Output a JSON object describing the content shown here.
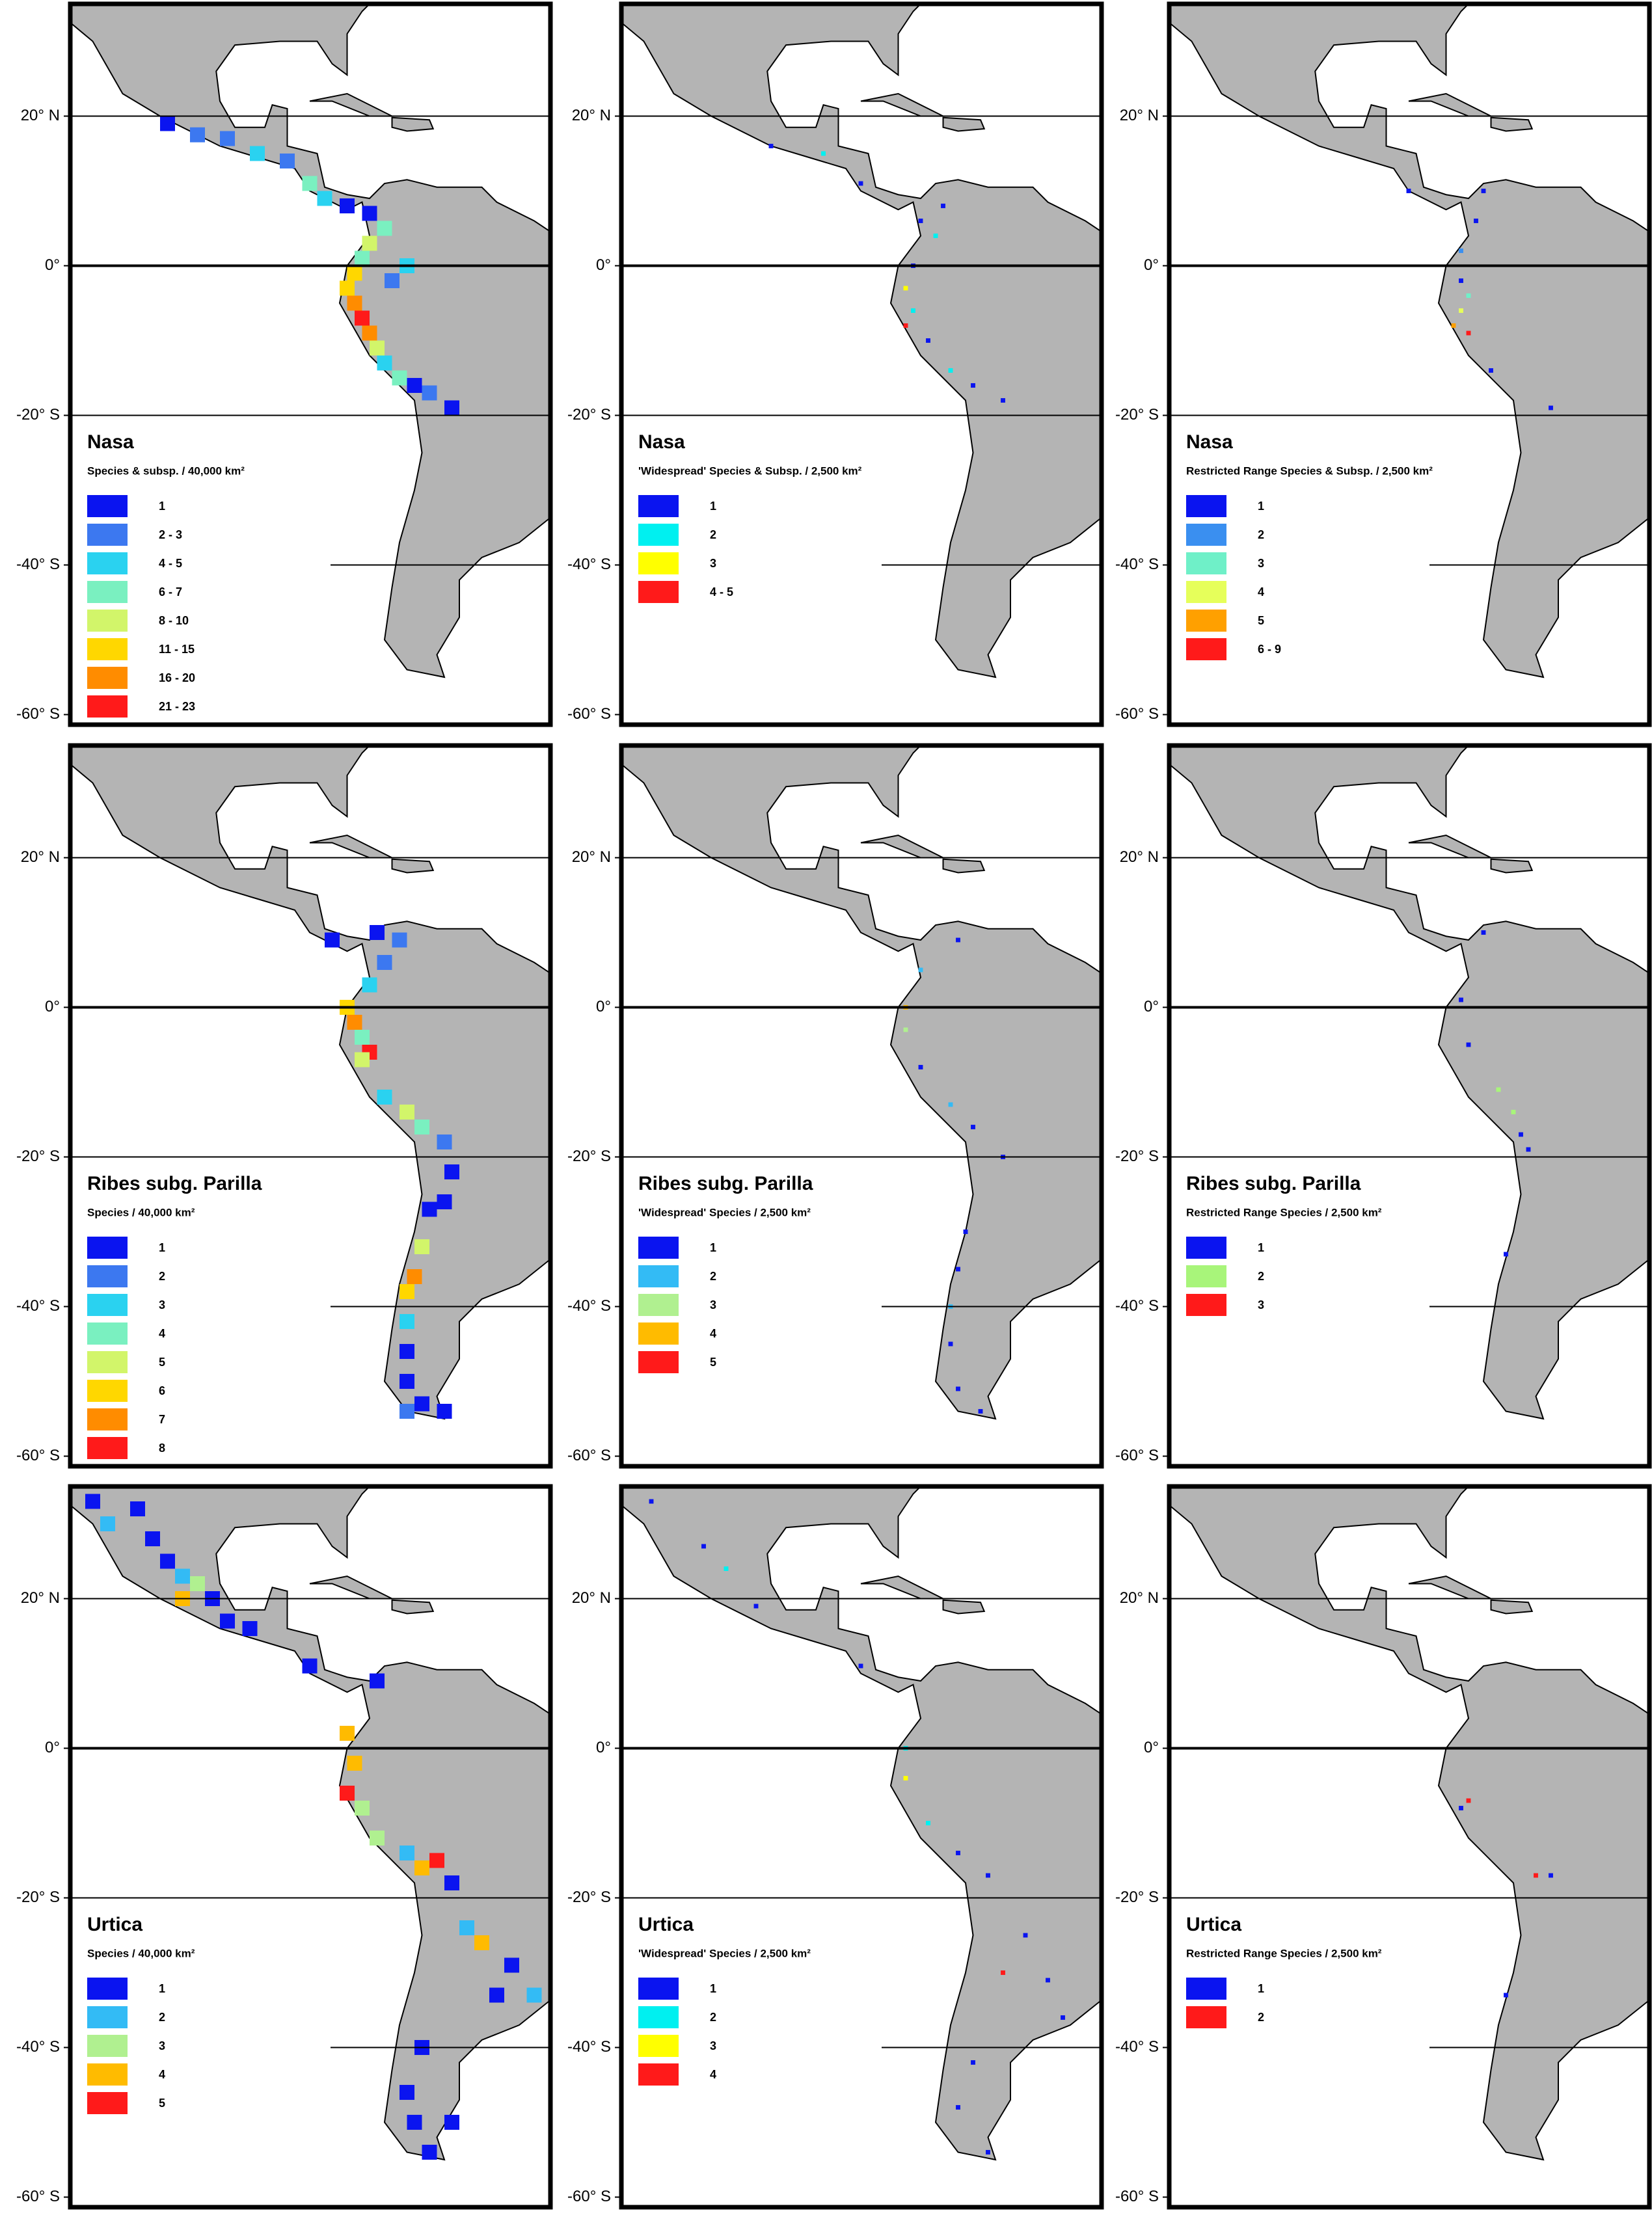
{
  "latitude_lines": [
    {
      "value": 20,
      "label": "20° N"
    },
    {
      "value": 0,
      "label": "0°"
    },
    {
      "value": -20,
      "label": "-20° S"
    },
    {
      "value": -40,
      "label": "-40° S"
    },
    {
      "value": -60,
      "label": "-60° S"
    }
  ],
  "panels": [
    {
      "title": "Nasa",
      "subtitle": "Species & subsp. / 40,000 km²",
      "legend": [
        {
          "label": "1",
          "color": "#0a14f0"
        },
        {
          "label": "2 - 3",
          "color": "#3c78f0"
        },
        {
          "label": "4 - 5",
          "color": "#2ad2f0"
        },
        {
          "label": "6 - 7",
          "color": "#7af0c0"
        },
        {
          "label": "8 - 10",
          "color": "#d2f56a"
        },
        {
          "label": "11 - 15",
          "color": "#ffd700"
        },
        {
          "label": "16 - 20",
          "color": "#ff8c00"
        },
        {
          "label": "21 - 23",
          "color": "#ff1a1a"
        }
      ],
      "cells": [
        [
          -104,
          19,
          0
        ],
        [
          -100,
          17.5,
          1
        ],
        [
          -96,
          17,
          1
        ],
        [
          -92,
          15,
          2
        ],
        [
          -88,
          14,
          1
        ],
        [
          -85,
          11,
          3
        ],
        [
          -83,
          9,
          2
        ],
        [
          -80,
          8,
          0
        ],
        [
          -77,
          7,
          0
        ],
        [
          -75,
          5,
          3
        ],
        [
          -77,
          3,
          4
        ],
        [
          -78,
          1,
          3
        ],
        [
          -79,
          -1,
          5
        ],
        [
          -80,
          -3,
          5
        ],
        [
          -79,
          -5,
          6
        ],
        [
          -78,
          -7,
          7
        ],
        [
          -77,
          -9,
          6
        ],
        [
          -76,
          -11,
          4
        ],
        [
          -75,
          -13,
          2
        ],
        [
          -73,
          -15,
          3
        ],
        [
          -71,
          -16,
          0
        ],
        [
          -69,
          -17,
          1
        ],
        [
          -66,
          -19,
          0
        ],
        [
          -74,
          -2,
          1
        ],
        [
          -72,
          0,
          2
        ]
      ]
    },
    {
      "title": "Nasa",
      "subtitle": "'Widespread' Species & Subsp. / 2,500 km²",
      "legend": [
        {
          "label": "1",
          "color": "#0a14f0"
        },
        {
          "label": "2",
          "color": "#00f0f0"
        },
        {
          "label": "3",
          "color": "#ffff00"
        },
        {
          "label": "4 - 5",
          "color": "#ff1a1a"
        }
      ],
      "cells": [
        [
          -97,
          16,
          0
        ],
        [
          -90,
          15,
          1
        ],
        [
          -85,
          11,
          0
        ],
        [
          -77,
          6,
          0
        ],
        [
          -75,
          4,
          1
        ],
        [
          -78,
          0,
          0
        ],
        [
          -79,
          -3,
          2
        ],
        [
          -78,
          -6,
          1
        ],
        [
          -76,
          -10,
          0
        ],
        [
          -73,
          -14,
          1
        ],
        [
          -70,
          -16,
          0
        ],
        [
          -66,
          -18,
          0
        ],
        [
          -74,
          8,
          0
        ],
        [
          -79,
          -8,
          3
        ]
      ]
    },
    {
      "title": "Nasa",
      "subtitle": "Restricted Range Species & Subsp. / 2,500 km²",
      "legend": [
        {
          "label": "1",
          "color": "#0a14f0"
        },
        {
          "label": "2",
          "color": "#3a8ff0"
        },
        {
          "label": "3",
          "color": "#6ff0c8"
        },
        {
          "label": "4",
          "color": "#e6ff5a"
        },
        {
          "label": "5",
          "color": "#ffa000"
        },
        {
          "label": "6 - 9",
          "color": "#ff1a1a"
        }
      ],
      "cells": [
        [
          -85,
          10,
          0
        ],
        [
          -75,
          10,
          0
        ],
        [
          -78,
          2,
          1
        ],
        [
          -78,
          -2,
          0
        ],
        [
          -77,
          -4,
          2
        ],
        [
          -78,
          -6,
          3
        ],
        [
          -79,
          -8,
          4
        ],
        [
          -77,
          -9,
          5
        ],
        [
          -74,
          -14,
          0
        ],
        [
          -66,
          -19,
          0
        ],
        [
          -76,
          6,
          0
        ]
      ]
    },
    {
      "title": "Ribes subg. Parilla",
      "subtitle": "Species / 40,000 km²",
      "legend": [
        {
          "label": "1",
          "color": "#0a14f0"
        },
        {
          "label": "2",
          "color": "#3c78f0"
        },
        {
          "label": "3",
          "color": "#2ad2f0"
        },
        {
          "label": "4",
          "color": "#7af0c0"
        },
        {
          "label": "5",
          "color": "#d2f56a"
        },
        {
          "label": "6",
          "color": "#ffd700"
        },
        {
          "label": "7",
          "color": "#ff8c00"
        },
        {
          "label": "8",
          "color": "#ff1a1a"
        }
      ],
      "cells": [
        [
          -82,
          9,
          0
        ],
        [
          -76,
          10,
          0
        ],
        [
          -73,
          9,
          1
        ],
        [
          -75,
          6,
          1
        ],
        [
          -77,
          3,
          2
        ],
        [
          -80,
          0,
          5
        ],
        [
          -79,
          -2,
          6
        ],
        [
          -78,
          -4,
          3
        ],
        [
          -77,
          -6,
          7
        ],
        [
          -78,
          -7,
          4
        ],
        [
          -75,
          -12,
          2
        ],
        [
          -72,
          -14,
          4
        ],
        [
          -70,
          -16,
          3
        ],
        [
          -67,
          -18,
          1
        ],
        [
          -66,
          -22,
          0
        ],
        [
          -67,
          -26,
          0
        ],
        [
          -69,
          -27,
          0
        ],
        [
          -70,
          -32,
          4
        ],
        [
          -71,
          -36,
          6
        ],
        [
          -72,
          -38,
          5
        ],
        [
          -72,
          -42,
          2
        ],
        [
          -72,
          -46,
          0
        ],
        [
          -72,
          -50,
          0
        ],
        [
          -70,
          -53,
          0
        ],
        [
          -67,
          -54,
          0
        ],
        [
          -72,
          -54,
          1
        ]
      ]
    },
    {
      "title": "Ribes subg. Parilla",
      "subtitle": "'Widespread' Species / 2,500 km²",
      "legend": [
        {
          "label": "1",
          "color": "#0a14f0"
        },
        {
          "label": "2",
          "color": "#33bbf5"
        },
        {
          "label": "3",
          "color": "#b0f090"
        },
        {
          "label": "4",
          "color": "#ffbb00"
        },
        {
          "label": "5",
          "color": "#ff1a1a"
        }
      ],
      "cells": [
        [
          -72,
          9,
          0
        ],
        [
          -77,
          5,
          1
        ],
        [
          -79,
          0,
          3
        ],
        [
          -79,
          -3,
          2
        ],
        [
          -77,
          -8,
          0
        ],
        [
          -73,
          -13,
          1
        ],
        [
          -70,
          -16,
          0
        ],
        [
          -66,
          -20,
          0
        ],
        [
          -71,
          -30,
          0
        ],
        [
          -72,
          -35,
          0
        ],
        [
          -73,
          -40,
          1
        ],
        [
          -73,
          -45,
          0
        ],
        [
          -72,
          -51,
          0
        ],
        [
          -69,
          -54,
          0
        ]
      ]
    },
    {
      "title": "Ribes subg. Parilla",
      "subtitle": "Restricted Range Species / 2,500 km²",
      "legend": [
        {
          "label": "1",
          "color": "#0a14f0"
        },
        {
          "label": "2",
          "color": "#a8f57a"
        },
        {
          "label": "3",
          "color": "#ff1a1a"
        }
      ],
      "cells": [
        [
          -75,
          10,
          0
        ],
        [
          -78,
          1,
          0
        ],
        [
          -77,
          -5,
          0
        ],
        [
          -73,
          -11,
          1
        ],
        [
          -71,
          -14,
          1
        ],
        [
          -70,
          -17,
          0
        ],
        [
          -69,
          -19,
          0
        ],
        [
          -72,
          -33,
          0
        ]
      ]
    },
    {
      "title": "Urtica",
      "subtitle": "Species / 40,000 km²",
      "legend": [
        {
          "label": "1",
          "color": "#0a14f0"
        },
        {
          "label": "2",
          "color": "#33bbf5"
        },
        {
          "label": "3",
          "color": "#b0f090"
        },
        {
          "label": "4",
          "color": "#ffbb00"
        },
        {
          "label": "5",
          "color": "#ff1a1a"
        }
      ],
      "cells": [
        [
          -114,
          33,
          0
        ],
        [
          -112,
          30,
          1
        ],
        [
          -108,
          32,
          0
        ],
        [
          -106,
          28,
          0
        ],
        [
          -104,
          25,
          0
        ],
        [
          -102,
          23,
          1
        ],
        [
          -100,
          22,
          2
        ],
        [
          -102,
          20,
          3
        ],
        [
          -98,
          20,
          0
        ],
        [
          -96,
          17,
          0
        ],
        [
          -93,
          16,
          0
        ],
        [
          -85,
          11,
          0
        ],
        [
          -76,
          9,
          0
        ],
        [
          -80,
          2,
          3
        ],
        [
          -79,
          -2,
          3
        ],
        [
          -80,
          -6,
          4
        ],
        [
          -78,
          -8,
          2
        ],
        [
          -76,
          -12,
          2
        ],
        [
          -72,
          -14,
          1
        ],
        [
          -70,
          -16,
          3
        ],
        [
          -68,
          -15,
          4
        ],
        [
          -66,
          -18,
          0
        ],
        [
          -64,
          -24,
          1
        ],
        [
          -62,
          -26,
          3
        ],
        [
          -58,
          -29,
          0
        ],
        [
          -55,
          -33,
          1
        ],
        [
          -60,
          -33,
          0
        ],
        [
          -70,
          -40,
          0
        ],
        [
          -72,
          -46,
          0
        ],
        [
          -71,
          -50,
          0
        ],
        [
          -69,
          -54,
          0
        ],
        [
          -66,
          -50,
          0
        ]
      ]
    },
    {
      "title": "Urtica",
      "subtitle": "'Widespread' Species / 2,500 km²",
      "legend": [
        {
          "label": "1",
          "color": "#0a14f0"
        },
        {
          "label": "2",
          "color": "#00f0f0"
        },
        {
          "label": "3",
          "color": "#ffff00"
        },
        {
          "label": "4",
          "color": "#ff1a1a"
        }
      ],
      "cells": [
        [
          -113,
          33,
          0
        ],
        [
          -106,
          27,
          0
        ],
        [
          -103,
          24,
          1
        ],
        [
          -99,
          19,
          0
        ],
        [
          -85,
          11,
          0
        ],
        [
          -79,
          0,
          1
        ],
        [
          -79,
          -4,
          2
        ],
        [
          -76,
          -10,
          1
        ],
        [
          -72,
          -14,
          0
        ],
        [
          -68,
          -17,
          0
        ],
        [
          -63,
          -25,
          0
        ],
        [
          -66,
          -30,
          3
        ],
        [
          -60,
          -31,
          0
        ],
        [
          -58,
          -36,
          0
        ],
        [
          -70,
          -42,
          0
        ],
        [
          -72,
          -48,
          0
        ],
        [
          -68,
          -54,
          0
        ]
      ]
    },
    {
      "title": "Urtica",
      "subtitle": "Restricted Range Species / 2,500 km²",
      "legend": [
        {
          "label": "1",
          "color": "#0a14f0"
        },
        {
          "label": "2",
          "color": "#ff1a1a"
        }
      ],
      "cells": [
        [
          -78,
          -8,
          0
        ],
        [
          -77,
          -7,
          1
        ],
        [
          -68,
          -17,
          1
        ],
        [
          -66,
          -17,
          0
        ],
        [
          -72,
          -33,
          0
        ]
      ]
    }
  ]
}
